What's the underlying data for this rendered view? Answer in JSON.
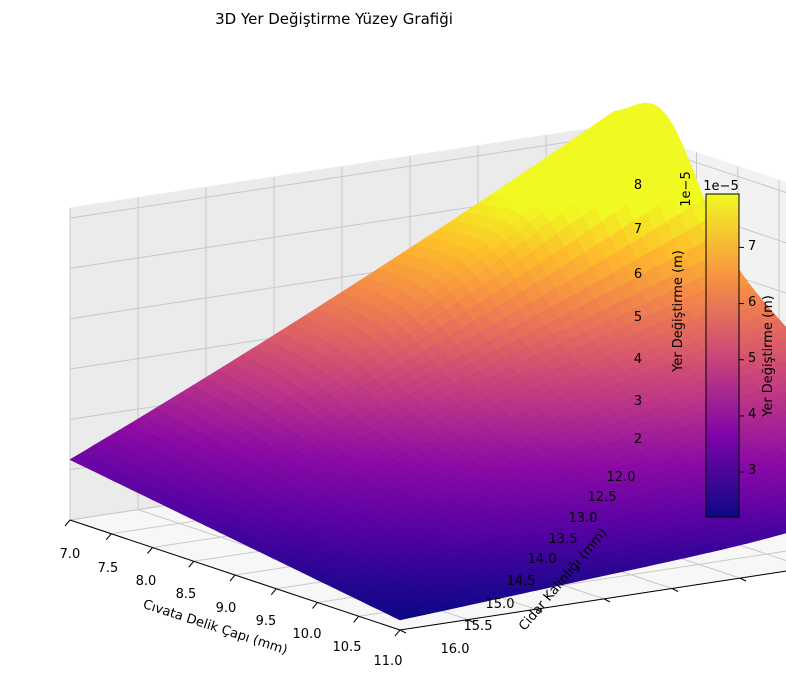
{
  "chart_data": {
    "type": "surface3d",
    "title": "3D Yer Değiştirme Yüzey Grafiği",
    "xlabel": "Cıvata Delik Çapı (mm)",
    "ylabel": "Cidar Kalınlığı (mm)",
    "zlabel": "Yer Değiştirme (m)",
    "z_offset_text": "1e−5",
    "xlim": [
      7.0,
      11.0
    ],
    "ylim": [
      12.0,
      16.0
    ],
    "zlim": [
      2.0,
      8.2
    ],
    "x_ticks": [
      "7.0",
      "7.5",
      "8.0",
      "8.5",
      "9.0",
      "9.5",
      "10.0",
      "10.5",
      "11.0"
    ],
    "y_ticks": [
      "12.0",
      "12.5",
      "13.0",
      "13.5",
      "14.0",
      "14.5",
      "15.0",
      "15.5",
      "16.0"
    ],
    "z_ticks": [
      "2",
      "3",
      "4",
      "5",
      "6",
      "7",
      "8"
    ],
    "colormap": "plasma",
    "colorbar": {
      "label": "Yer Değiştirme (m)",
      "offset_text": "1e−5",
      "range": [
        2.2,
        7.95
      ],
      "ticks": [
        "3",
        "4",
        "5",
        "6",
        "7"
      ]
    },
    "surface_samples": [
      {
        "x": 7.0,
        "y": 12.0,
        "z": 7.95
      },
      {
        "x": 7.0,
        "y": 16.0,
        "z": 3.2
      },
      {
        "x": 11.0,
        "y": 12.0,
        "z": 2.9
      },
      {
        "x": 11.0,
        "y": 16.0,
        "z": 2.2
      },
      {
        "x": 9.0,
        "y": 14.0,
        "z": 4.1
      }
    ]
  }
}
